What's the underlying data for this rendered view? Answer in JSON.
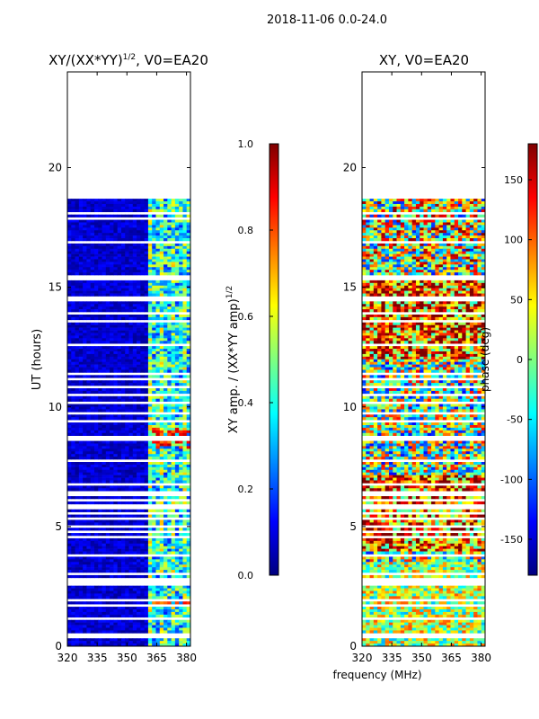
{
  "figure_title": "2018-11-06 0.0-24.0",
  "colors": {
    "jet": [
      "#00007f",
      "#0000ff",
      "#007fff",
      "#00ffff",
      "#7fff7f",
      "#ffff00",
      "#ff7f00",
      "#ff0000",
      "#7f0000"
    ],
    "missing": "#ffffff"
  },
  "chart_data": [
    {
      "type": "heatmap",
      "title_main": "XY/(XX*YY)",
      "title_sup": "1/2",
      "title_rest": ", V0=EA20",
      "xlabel": "",
      "ylabel": "UT (hours)",
      "xlim": [
        320,
        382
      ],
      "ylim": [
        0,
        24
      ],
      "xticks": [
        "320",
        "335",
        "350",
        "365",
        "380"
      ],
      "xtick_values": [
        320,
        335,
        350,
        365,
        380
      ],
      "yticks": [
        "0",
        "5",
        "10",
        "15",
        "20"
      ],
      "ytick_values": [
        0,
        5,
        10,
        15,
        20
      ],
      "data_range_hours": [
        0,
        18.7
      ],
      "colorbar": {
        "label_main": "XY amp. / (XX*YY amp)",
        "label_sup": "1/2",
        "range": [
          0,
          1
        ],
        "ticks": [
          "0.0",
          "0.2",
          "0.4",
          "0.6",
          "0.8",
          "1.0"
        ],
        "tick_values": [
          0,
          0.2,
          0.4,
          0.6,
          0.8,
          1.0
        ]
      }
    },
    {
      "type": "heatmap",
      "title": "XY, V0=EA20",
      "xlabel": "frequency (MHz)",
      "xlim": [
        320,
        382
      ],
      "ylim": [
        0,
        24
      ],
      "xticks": [
        "320",
        "335",
        "350",
        "365",
        "380"
      ],
      "xtick_values": [
        320,
        335,
        350,
        365,
        380
      ],
      "yticks": [
        "0",
        "5",
        "10",
        "15",
        "20"
      ],
      "ytick_values": [
        0,
        5,
        10,
        15,
        20
      ],
      "data_range_hours": [
        0,
        18.7
      ],
      "colorbar": {
        "label": "phase (deg)",
        "range": [
          -180,
          180
        ],
        "ticks": [
          "-150",
          "-100",
          "-50",
          "0",
          "50",
          "100",
          "150"
        ],
        "tick_values": [
          -150,
          -100,
          -50,
          0,
          50,
          100,
          150
        ]
      }
    }
  ]
}
